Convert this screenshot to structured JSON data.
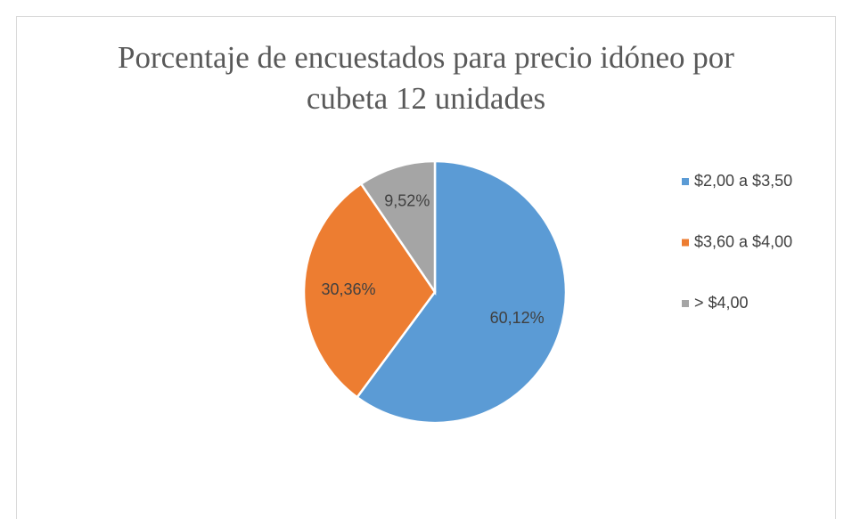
{
  "chart_data": {
    "type": "pie",
    "title": "Porcentaje de encuestados para precio idóneo por cubeta 12 unidades",
    "categories": [
      "$2,00 a $3,50",
      "$3,60 a $4,00",
      "> $4,00"
    ],
    "values": [
      60.12,
      30.36,
      9.52
    ],
    "value_labels": [
      "60,12%",
      "30,36%",
      "9,52%"
    ],
    "colors": [
      "#5b9bd5",
      "#ed7d31",
      "#a5a5a5"
    ],
    "legend": "right"
  }
}
